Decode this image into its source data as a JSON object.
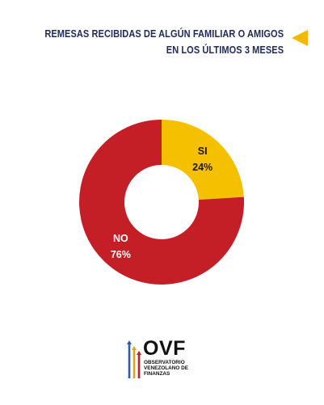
{
  "title": {
    "line1": "REMESAS RECIBIDAS DE ALGÚN FAMILIAR O AMIGOS",
    "line2": "EN LOS ÚLTIMOS 3 MESES",
    "text_color": "#1f2a5c",
    "marker_color": "#f5b800",
    "marker_icon": "left-pointing-triangle-icon"
  },
  "chart_data": {
    "type": "pie",
    "style": "donut",
    "categories": [
      "SI",
      "NO"
    ],
    "values": [
      24,
      76
    ],
    "value_labels": [
      "24%",
      "76%"
    ],
    "colors": [
      "#f5c000",
      "#c41f26"
    ],
    "label_colors": [
      "#1a1a1a",
      "#ffffff"
    ],
    "title": "REMESAS RECIBIDAS DE ALGÚN FAMILIAR O AMIGOS EN LOS ÚLTIMOS 3 MESES"
  },
  "logo": {
    "abbr": "OVF",
    "name_line1": "OBSERVATORIO",
    "name_line2": "VENEZOLANO DE",
    "name_line3": "FINANZAS"
  }
}
